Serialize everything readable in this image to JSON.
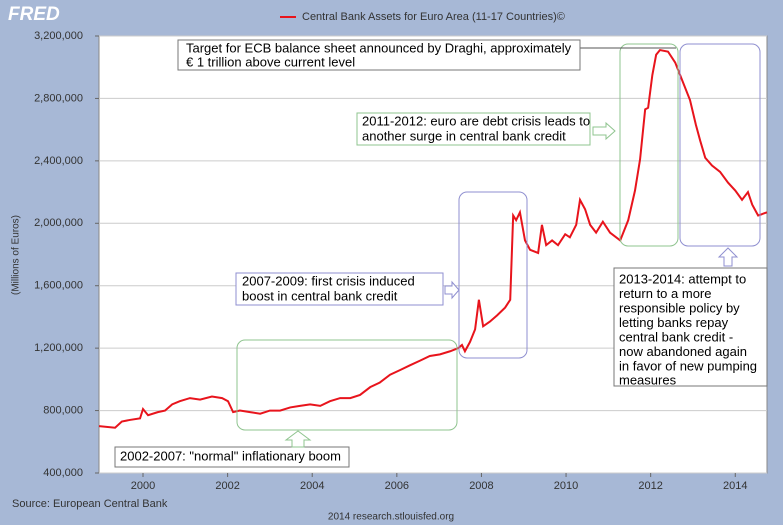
{
  "logo": "FRED",
  "chart_data": {
    "type": "line",
    "y_label": "(Millions of Euros)",
    "source": "Source: European Central Bank",
    "footer": "2014 research.stlouisfed.org",
    "x": [
      1998.96,
      1999.34,
      1999.5,
      1999.69,
      1999.93,
      2000.0,
      2000.12,
      2000.35,
      2000.52,
      2000.69,
      2000.87,
      2001.11,
      2001.35,
      2001.63,
      2001.87,
      2002.01,
      2002.13,
      2002.29,
      2002.53,
      2002.77,
      2003.0,
      2003.24,
      2003.48,
      2003.71,
      2003.95,
      2004.19,
      2004.42,
      2004.66,
      2004.9,
      2005.13,
      2005.37,
      2005.6,
      2005.84,
      2006.08,
      2006.31,
      2006.55,
      2006.78,
      2007.02,
      2007.26,
      2007.45,
      2007.54,
      2007.61,
      2007.73,
      2007.85,
      2007.94,
      2008.04,
      2008.2,
      2008.37,
      2008.56,
      2008.68,
      2008.75,
      2008.82,
      2008.91,
      2009.03,
      2009.15,
      2009.34,
      2009.43,
      2009.53,
      2009.67,
      2009.81,
      2009.98,
      2010.09,
      2010.24,
      2010.33,
      2010.45,
      2010.57,
      2010.71,
      2010.87,
      2011.04,
      2011.28,
      2011.47,
      2011.63,
      2011.75,
      2011.87,
      2011.94,
      2012.04,
      2012.13,
      2012.22,
      2012.41,
      2012.58,
      2012.74,
      2012.93,
      2013.07,
      2013.17,
      2013.29,
      2013.45,
      2013.64,
      2013.83,
      2014.0,
      2014.16,
      2014.3,
      2014.4,
      2014.54,
      2014.75
    ],
    "series": [
      {
        "name": "Central Bank Assets for Euro Area (11-17 Countries)©",
        "color": "#e8141c",
        "values": [
          700000,
          690000,
          730000,
          740000,
          750000,
          810000,
          770000,
          790000,
          800000,
          840000,
          860000,
          880000,
          870000,
          890000,
          880000,
          860000,
          790000,
          800000,
          790000,
          780000,
          800000,
          800000,
          820000,
          830000,
          840000,
          830000,
          860000,
          880000,
          880000,
          900000,
          950000,
          980000,
          1030000,
          1060000,
          1090000,
          1120000,
          1150000,
          1160000,
          1180000,
          1200000,
          1220000,
          1180000,
          1240000,
          1320000,
          1510000,
          1340000,
          1370000,
          1410000,
          1460000,
          1510000,
          2050000,
          2020000,
          2070000,
          1890000,
          1830000,
          1810000,
          1990000,
          1860000,
          1890000,
          1860000,
          1930000,
          1910000,
          1990000,
          2150000,
          2090000,
          1990000,
          1940000,
          2010000,
          1940000,
          1890000,
          2020000,
          2210000,
          2410000,
          2730000,
          2740000,
          2950000,
          3080000,
          3110000,
          3100000,
          3030000,
          2920000,
          2790000,
          2630000,
          2530000,
          2420000,
          2370000,
          2330000,
          2260000,
          2210000,
          2150000,
          2200000,
          2120000,
          2050000,
          2070000
        ]
      }
    ],
    "xlim": [
      1998.96,
      2014.75
    ],
    "xticks": [
      2000,
      2002,
      2004,
      2006,
      2008,
      2010,
      2012,
      2014
    ],
    "ylim": [
      400000,
      3200000
    ],
    "yticks": [
      {
        "value": 400000,
        "label": "400,000"
      },
      {
        "value": 800000,
        "label": "800,000"
      },
      {
        "value": 1200000,
        "label": "1,200,000"
      },
      {
        "value": 1600000,
        "label": "1,600,000"
      },
      {
        "value": 2000000,
        "label": "2,000,000"
      },
      {
        "value": 2400000,
        "label": "2,400,000"
      },
      {
        "value": 2800000,
        "label": "2,800,000"
      },
      {
        "value": 3200000,
        "label": "3,200,000"
      }
    ],
    "grid": true,
    "annotations": [
      {
        "lines": [
          "Target for ECB balance sheet announced by Draghi, approximately",
          "€ 1 trillion above current level"
        ]
      },
      {
        "lines": [
          "2011-2012: euro are debt crisis leads to",
          "another surge in central bank credit"
        ]
      },
      {
        "lines": [
          "2007-2009: first crisis induced",
          "boost in central bank credit"
        ]
      },
      {
        "lines": [
          "2013-2014: attempt to",
          "return to a more",
          "responsible policy by",
          "letting banks repay",
          "central bank credit -",
          "now abandoned again",
          "in favor of new pumping",
          "measures"
        ]
      },
      {
        "lines": [
          "2002-2007: \"normal\" inflationary boom"
        ]
      }
    ]
  }
}
